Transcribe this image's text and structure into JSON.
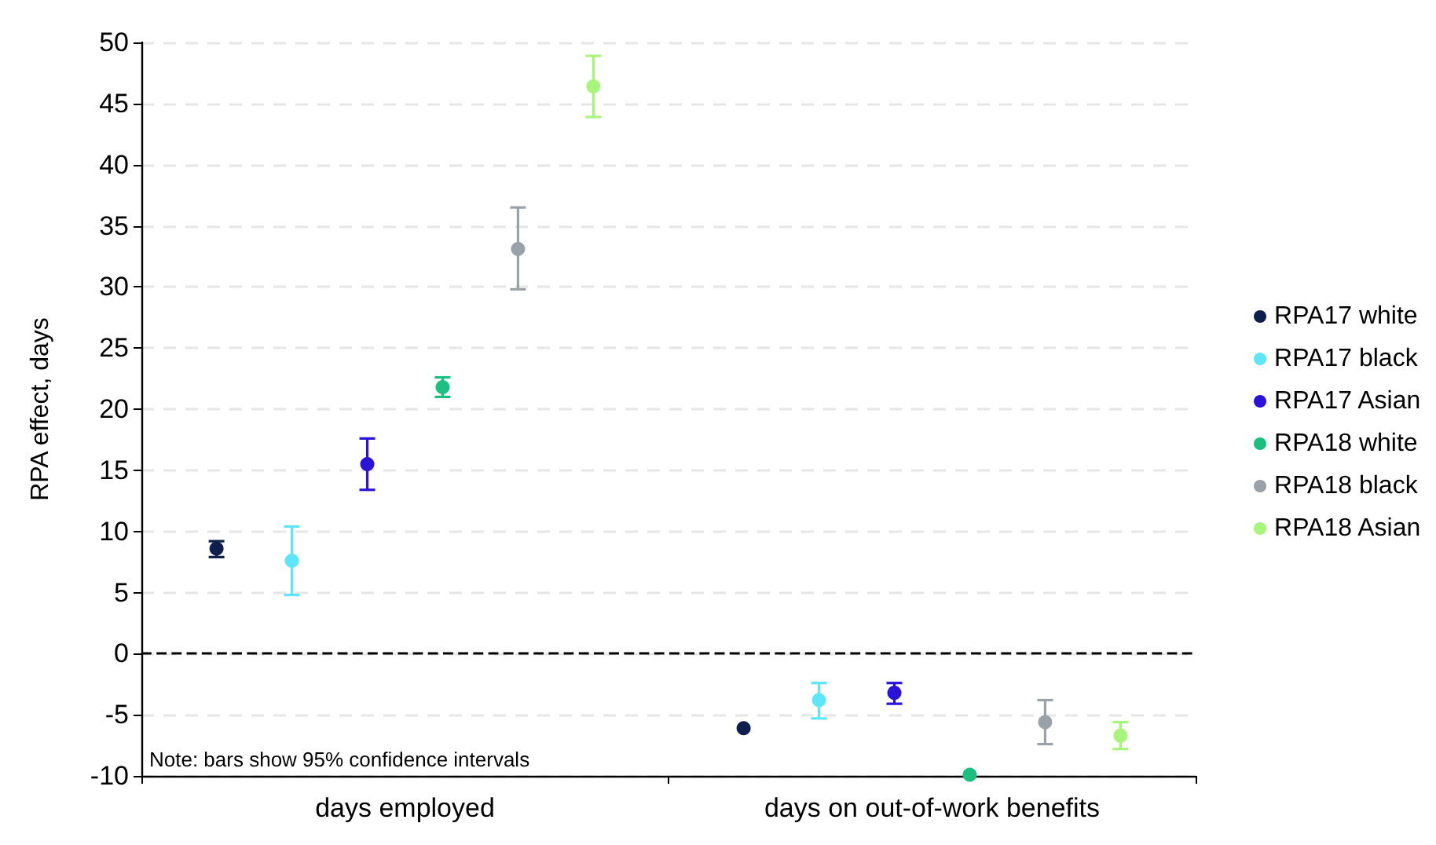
{
  "chart_data": {
    "type": "scatter",
    "ylabel": "RPA effect, days",
    "categories": [
      "days employed",
      "days on out-of-work benefits"
    ],
    "series": [
      {
        "name": "RPA17 white",
        "color": "#0e1f4d",
        "values": [
          8.6,
          -6.1
        ],
        "errors": [
          [
            7.9,
            9.2
          ],
          null
        ]
      },
      {
        "name": "RPA17 black",
        "color": "#5ce6f7",
        "values": [
          7.6,
          -3.8
        ],
        "errors": [
          [
            4.8,
            10.4
          ],
          [
            -5.3,
            -2.4
          ]
        ]
      },
      {
        "name": "RPA17 Asian",
        "color": "#2b12d9",
        "values": [
          15.5,
          -3.2
        ],
        "errors": [
          [
            13.4,
            17.6
          ],
          [
            -4.1,
            -2.4
          ]
        ]
      },
      {
        "name": "RPA18 white",
        "color": "#1bbf80",
        "values": [
          21.8,
          -9.9
        ],
        "errors": [
          [
            21.0,
            22.6
          ],
          null
        ]
      },
      {
        "name": "RPA18 black",
        "color": "#99a2a8",
        "values": [
          33.1,
          -5.6
        ],
        "errors": [
          [
            29.8,
            36.5
          ],
          [
            -7.4,
            -3.8
          ]
        ]
      },
      {
        "name": "RPA18 Asian",
        "color": "#a8f57c",
        "values": [
          46.4,
          -6.7
        ],
        "errors": [
          [
            43.9,
            48.9
          ],
          [
            -7.8,
            -5.6
          ]
        ]
      }
    ],
    "ylim": [
      -10,
      50
    ],
    "yticks": [
      -10,
      -5,
      0,
      5,
      10,
      15,
      20,
      25,
      30,
      35,
      40,
      45,
      50
    ],
    "grid": "y",
    "legend": "right",
    "marker": "circle",
    "ref_lines": [
      {
        "axis": "y",
        "value": 0,
        "color": "#000000",
        "line_style": "dashed"
      }
    ],
    "annotations": [
      "Note: bars show 95% confidence intervals"
    ]
  }
}
